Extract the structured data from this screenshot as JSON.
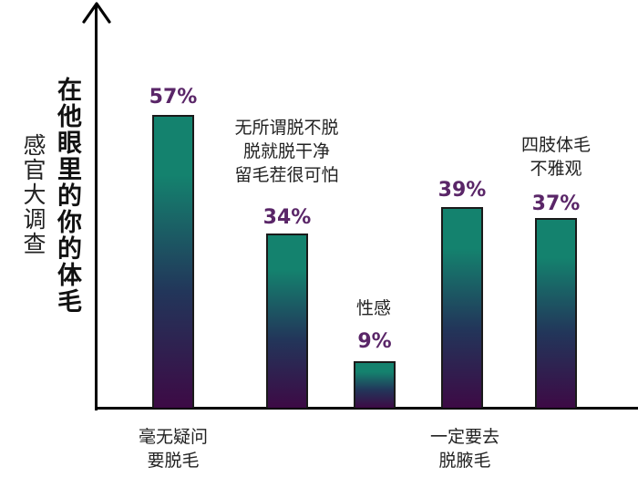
{
  "chart_data": {
    "type": "bar",
    "title": "在他眼里的你的体毛",
    "subtitle": "感官大调查",
    "xlabel": "",
    "ylabel": "",
    "ylim": [
      0,
      100
    ],
    "grid": false,
    "legend": null,
    "categories": [
      "毫无疑问要脱毛",
      "无所谓脱不脱，脱就脱干净，留毛茬很可怕",
      "性感",
      "一定要去脱腋毛",
      "四肢体毛不雅观"
    ],
    "values": [
      57,
      34,
      9,
      39,
      37
    ],
    "value_labels": [
      "57%",
      "34%",
      "9%",
      "39%",
      "37%"
    ],
    "bar_gradient": {
      "top": "#14826e",
      "middle": "#22365a",
      "bottom": "#3d0a45"
    },
    "value_label_color": "#5a2668"
  },
  "titles": {
    "main": "在他眼里的你的体毛",
    "sub": "感官大调查"
  },
  "bars": [
    {
      "value_label": "57%",
      "annotation": "",
      "x_label": "毫无疑问\n要脱毛"
    },
    {
      "value_label": "34%",
      "annotation": "无所谓脱不脱\n脱就脱干净\n留毛茬很可怕",
      "x_label": ""
    },
    {
      "value_label": "9%",
      "annotation": "性感",
      "x_label": ""
    },
    {
      "value_label": "39%",
      "annotation": "",
      "x_label": "一定要去\n脱腋毛"
    },
    {
      "value_label": "37%",
      "annotation": "四肢体毛\n不雅观",
      "x_label": ""
    }
  ]
}
